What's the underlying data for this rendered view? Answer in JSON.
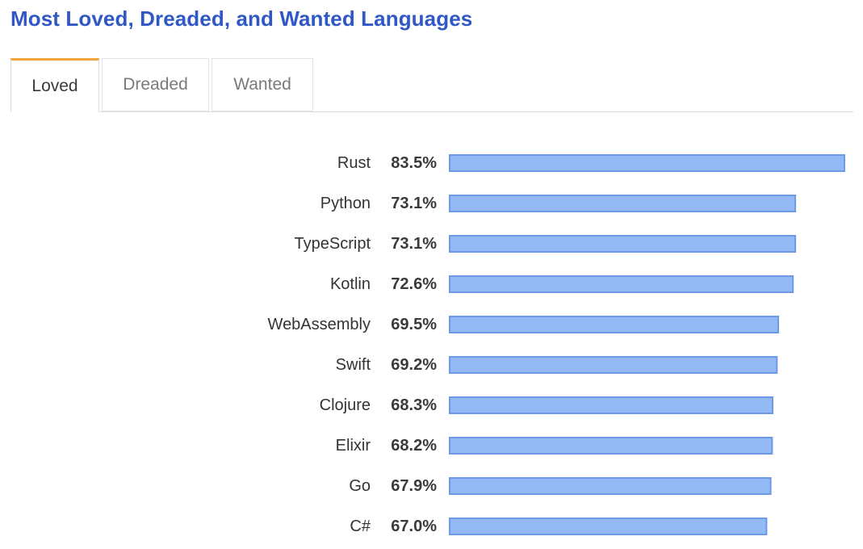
{
  "page": {
    "title": "Most Loved, Dreaded, and Wanted Languages"
  },
  "tabs": [
    {
      "label": "Loved",
      "active": true
    },
    {
      "label": "Dreaded",
      "active": false
    },
    {
      "label": "Wanted",
      "active": false
    }
  ],
  "colors": {
    "title": "#2f57c5",
    "active_tab_accent": "#f2a33c",
    "bar_fill": "#93b9f5",
    "bar_stroke": "#6d9ae6"
  },
  "chart_data": {
    "type": "bar",
    "orientation": "horizontal",
    "categories": [
      "Rust",
      "Python",
      "TypeScript",
      "Kotlin",
      "WebAssembly",
      "Swift",
      "Clojure",
      "Elixir",
      "Go",
      "C#"
    ],
    "values": [
      83.5,
      73.1,
      73.1,
      72.6,
      69.5,
      69.2,
      68.3,
      68.2,
      67.9,
      67.0
    ],
    "value_labels": [
      "83.5%",
      "73.1%",
      "73.1%",
      "72.6%",
      "69.5%",
      "69.2%",
      "68.3%",
      "68.2%",
      "67.9%",
      "67.0%"
    ],
    "unit": "%",
    "xlim": [
      0,
      83.5
    ],
    "grid": false,
    "legend": "none"
  }
}
